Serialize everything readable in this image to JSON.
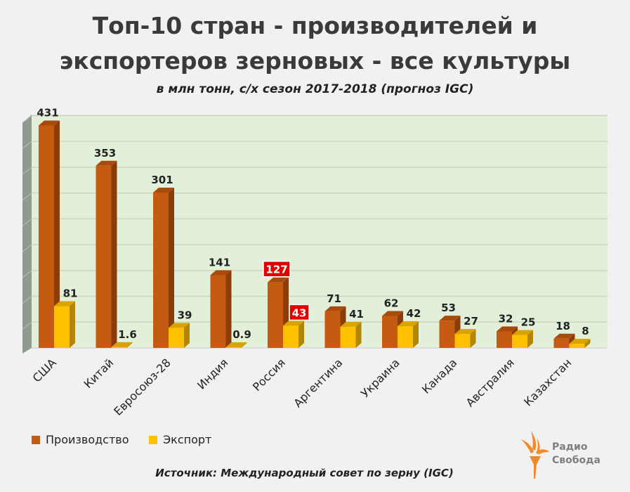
{
  "chart_data": {
    "type": "bar",
    "title": "Топ-10 стран - производителей и экспортеров зерновых - все культуры",
    "title_lines": [
      "Топ-10 стран - производителей и",
      "экспортеров зерновых - все культуры"
    ],
    "subtitle": "в млн тонн, с/х сезон 2017-2018 (прогноз IGC)",
    "categories": [
      "США",
      "Китай",
      "Евросоюз-28",
      "Индия",
      "Россия",
      "Аргентина",
      "Украина",
      "Канада",
      "Австралия",
      "Казахстан"
    ],
    "series": [
      {
        "name": "Производство",
        "color": "#c55a11",
        "values": [
          431,
          353,
          301,
          141,
          127,
          71,
          62,
          53,
          32,
          18
        ],
        "labels": [
          "431",
          "353",
          "301",
          "141",
          "127",
          "71",
          "62",
          "53",
          "32",
          "18"
        ]
      },
      {
        "name": "Экспорт",
        "color": "#ffc000",
        "values": [
          81,
          1.6,
          39,
          0.9,
          43,
          41,
          42,
          27,
          25,
          8
        ],
        "labels": [
          "81",
          "1.6",
          "39",
          "0.9",
          "43",
          "41",
          "42",
          "27",
          "25",
          "8"
        ]
      }
    ],
    "highlight_category": "Россия",
    "highlight_color": "#e00000",
    "ylim": [
      0,
      450
    ],
    "grid": true,
    "legend": "bottom-left",
    "style": "3d-column",
    "plot_background": "#e2efd9"
  },
  "footer": {
    "source": "Источник: Международный совет по зерну (IGC)",
    "logo_lines": [
      "Радио",
      "Свобода"
    ]
  }
}
